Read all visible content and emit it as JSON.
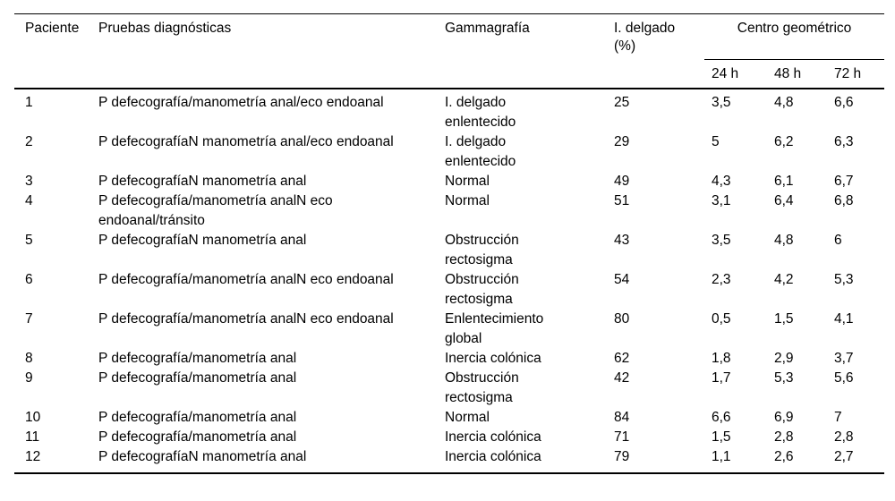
{
  "colors": {
    "text": "#000000",
    "background": "#ffffff",
    "rule": "#000000"
  },
  "table": {
    "headers": {
      "paciente": "Paciente",
      "pruebas": "Pruebas diagnósticas",
      "gammagrafia": "Gammagrafía",
      "i_delgado": "I. delgado\n(%)",
      "centro_geometrico": "Centro geométrico",
      "sub": [
        "24 h",
        "48 h",
        "72 h"
      ]
    },
    "rows": [
      {
        "paciente": "1",
        "pruebas": "P defecografía/manometría anal/eco endoanal",
        "gammagrafia": "I. delgado\nenlentecido",
        "i_delgado": "25",
        "h24": "3,5",
        "h48": "4,8",
        "h72": "6,6"
      },
      {
        "paciente": "2",
        "pruebas": "P defecografíaN manometría anal/eco endoanal",
        "gammagrafia": "I. delgado\nenlentecido",
        "i_delgado": "29",
        "h24": "5",
        "h48": "6,2",
        "h72": "6,3"
      },
      {
        "paciente": "3",
        "pruebas": "P defecografíaN manometría anal",
        "gammagrafia": "Normal",
        "i_delgado": "49",
        "h24": "4,3",
        "h48": "6,1",
        "h72": "6,7"
      },
      {
        "paciente": "4",
        "pruebas": "P defecografía/manometría analN eco\nendoanal/tránsito",
        "gammagrafia": "Normal",
        "i_delgado": "51",
        "h24": "3,1",
        "h48": "6,4",
        "h72": "6,8"
      },
      {
        "paciente": "5",
        "pruebas": "P defecografíaN manometría anal",
        "gammagrafia": "Obstrucción\nrectosigma",
        "i_delgado": "43",
        "h24": "3,5",
        "h48": "4,8",
        "h72": "6"
      },
      {
        "paciente": "6",
        "pruebas": "P defecografía/manometría analN eco endoanal",
        "gammagrafia": "Obstrucción\nrectosigma",
        "i_delgado": "54",
        "h24": "2,3",
        "h48": "4,2",
        "h72": "5,3"
      },
      {
        "paciente": "7",
        "pruebas": "P defecografía/manometría analN eco endoanal",
        "gammagrafia": "Enlentecimiento\nglobal",
        "i_delgado": "80",
        "h24": "0,5",
        "h48": "1,5",
        "h72": "4,1"
      },
      {
        "paciente": "8",
        "pruebas": "P defecografía/manometría anal",
        "gammagrafia": "Inercia colónica",
        "i_delgado": "62",
        "h24": "1,8",
        "h48": "2,9",
        "h72": "3,7"
      },
      {
        "paciente": "9",
        "pruebas": "P defecografía/manometría anal",
        "gammagrafia": "Obstrucción\nrectosigma",
        "i_delgado": "42",
        "h24": "1,7",
        "h48": "5,3",
        "h72": "5,6"
      },
      {
        "paciente": "10",
        "pruebas": "P defecografía/manometría anal",
        "gammagrafia": "Normal",
        "i_delgado": "84",
        "h24": "6,6",
        "h48": "6,9",
        "h72": "7"
      },
      {
        "paciente": "11",
        "pruebas": "P defecografía/manometría anal",
        "gammagrafia": "Inercia colónica",
        "i_delgado": "71",
        "h24": "1,5",
        "h48": "2,8",
        "h72": "2,8"
      },
      {
        "paciente": "12",
        "pruebas": "P defecografíaN manometría anal",
        "gammagrafia": "Inercia colónica",
        "i_delgado": "79",
        "h24": "1,1",
        "h48": "2,6",
        "h72": "2,7"
      }
    ]
  }
}
